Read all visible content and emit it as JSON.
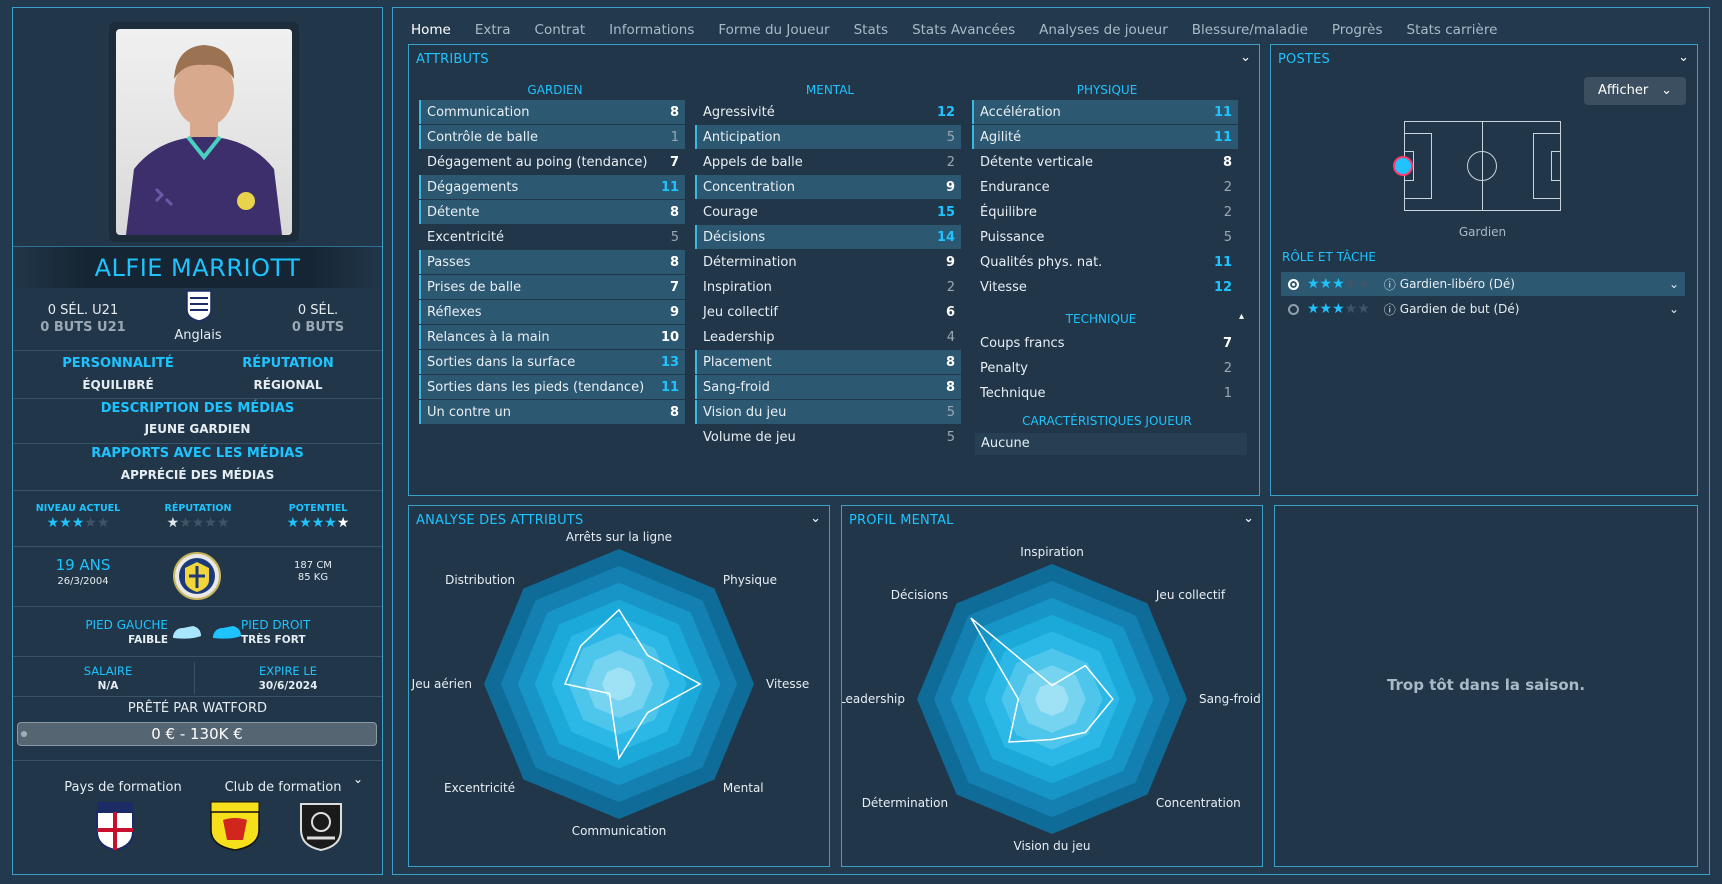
{
  "player": {
    "name": "ALFIE MARRIOTT",
    "u21_caps": "0 SÉL. U21",
    "u21_goals": "0 BUTS U21",
    "nationality": "Anglais",
    "caps": "0 SÉL.",
    "goals": "0 BUTS",
    "personality_label": "PERSONNALITÉ",
    "personality_value": "ÉQUILIBRÉ",
    "reputation_label": "RÉPUTATION",
    "reputation_value": "RÉGIONAL",
    "media_desc_label": "DESCRIPTION DES MÉDIAS",
    "media_desc_value": "JEUNE GARDIEN",
    "media_rel_label": "RAPPORTS AVEC LES MÉDIAS",
    "media_rel_value": "APPRÉCIÉ DES MÉDIAS",
    "current_ability_label": "NIVEAU ACTUEL",
    "current_ability_stars": 3,
    "reputation_stars_label": "RÉPUTATION",
    "reputation_stars": 0.5,
    "potential_label": "POTENTIEL",
    "potential_stars": 4,
    "age": "19 ANS",
    "dob": "26/3/2004",
    "height": "187 CM",
    "weight": "85 KG",
    "left_foot_label": "PIED GAUCHE",
    "left_foot_value": "FAIBLE",
    "right_foot_label": "PIED DROIT",
    "right_foot_value": "TRÈS FORT",
    "salary_label": "SALAIRE",
    "salary_value": "N/A",
    "expires_label": "EXPIRE LE",
    "expires_value": "30/6/2024",
    "loan_text": "PRÊTÉ PAR WATFORD",
    "value_range": "0 € - 130K €",
    "training_country_label": "Pays de formation",
    "training_club_label": "Club de formation"
  },
  "tabs": [
    "Home",
    "Extra",
    "Contrat",
    "Informations",
    "Forme du Joueur",
    "Stats",
    "Stats Avancées",
    "Analyses de joueur",
    "Blessure/maladie",
    "Progrès",
    "Stats carrière"
  ],
  "attributes": {
    "title": "ATTRIBUTS",
    "goalkeeper_head": "GARDIEN",
    "mental_head": "MENTAL",
    "physical_head": "PHYSIQUE",
    "technical_head": "TECHNIQUE",
    "traits_head": "CARACTÉRISTIQUES JOUEUR",
    "traits_value": "Aucune",
    "goalkeeper": [
      {
        "name": "Communication",
        "value": "8",
        "hl": true
      },
      {
        "name": "Contrôle de balle",
        "value": "1",
        "hl": true
      },
      {
        "name": "Dégagement au poing (tendance)",
        "value": "7",
        "hl": false
      },
      {
        "name": "Dégagements",
        "value": "11",
        "hl": true
      },
      {
        "name": "Détente",
        "value": "8",
        "hl": true
      },
      {
        "name": "Excentricité",
        "value": "5",
        "hl": false
      },
      {
        "name": "Passes",
        "value": "8",
        "hl": true
      },
      {
        "name": "Prises de balle",
        "value": "7",
        "hl": true
      },
      {
        "name": "Réflexes",
        "value": "9",
        "hl": true
      },
      {
        "name": "Relances à la main",
        "value": "10",
        "hl": true
      },
      {
        "name": "Sorties dans la surface",
        "value": "13",
        "hl": true
      },
      {
        "name": "Sorties dans les pieds (tendance)",
        "value": "11",
        "hl": true
      },
      {
        "name": "Un contre un",
        "value": "8",
        "hl": true
      }
    ],
    "mental": [
      {
        "name": "Agressivité",
        "value": "12",
        "hl": false
      },
      {
        "name": "Anticipation",
        "value": "5",
        "hl": true
      },
      {
        "name": "Appels de balle",
        "value": "2",
        "hl": false
      },
      {
        "name": "Concentration",
        "value": "9",
        "hl": true
      },
      {
        "name": "Courage",
        "value": "15",
        "hl": false
      },
      {
        "name": "Décisions",
        "value": "14",
        "hl": true
      },
      {
        "name": "Détermination",
        "value": "9",
        "hl": false
      },
      {
        "name": "Inspiration",
        "value": "2",
        "hl": false
      },
      {
        "name": "Jeu collectif",
        "value": "6",
        "hl": false
      },
      {
        "name": "Leadership",
        "value": "4",
        "hl": false
      },
      {
        "name": "Placement",
        "value": "8",
        "hl": true
      },
      {
        "name": "Sang-froid",
        "value": "8",
        "hl": true
      },
      {
        "name": "Vision du jeu",
        "value": "5",
        "hl": true
      },
      {
        "name": "Volume de jeu",
        "value": "5",
        "hl": false
      }
    ],
    "physical": [
      {
        "name": "Accélération",
        "value": "11",
        "hl": true
      },
      {
        "name": "Agilité",
        "value": "11",
        "hl": true
      },
      {
        "name": "Détente verticale",
        "value": "8",
        "hl": false
      },
      {
        "name": "Endurance",
        "value": "2",
        "hl": false
      },
      {
        "name": "Équilibre",
        "value": "2",
        "hl": false
      },
      {
        "name": "Puissance",
        "value": "5",
        "hl": false
      },
      {
        "name": "Qualités phys. nat.",
        "value": "11",
        "hl": false
      },
      {
        "name": "Vitesse",
        "value": "12",
        "hl": false
      }
    ],
    "technical": [
      {
        "name": "Coups francs",
        "value": "7",
        "hl": false
      },
      {
        "name": "Penalty",
        "value": "2",
        "hl": false
      },
      {
        "name": "Technique",
        "value": "1",
        "hl": false
      }
    ]
  },
  "positions": {
    "title": "POSTES",
    "show_button": "Afficher",
    "position_label": "Gardien",
    "roles_title": "RÔLE ET TÂCHE",
    "roles": [
      {
        "name": "Gardien-libéro (Dé)",
        "stars": 3,
        "selected": true
      },
      {
        "name": "Gardien de but (Dé)",
        "stars": 3,
        "selected": false
      }
    ]
  },
  "analysis": {
    "title": "ANALYSE DES ATTRIBUTS",
    "axes": [
      "Arrêts sur la ligne",
      "Physique",
      "Vitesse",
      "Mental",
      "Communication",
      "Excentricité",
      "Jeu aérien",
      "Distribution"
    ],
    "values": [
      0.55,
      0.3,
      0.6,
      0.3,
      0.55,
      0.1,
      0.4,
      0.4
    ]
  },
  "mental_profile": {
    "title": "PROFIL MENTAL",
    "axes": [
      "Inspiration",
      "Jeu collectif",
      "Sang-froid",
      "Concentration",
      "Vision du jeu",
      "Détermination",
      "Leadership",
      "Décisions"
    ],
    "values": [
      0.1,
      0.35,
      0.45,
      0.35,
      0.3,
      0.45,
      0.25,
      0.85
    ]
  },
  "season": {
    "message": "Trop tôt dans la saison."
  },
  "colors": {
    "accent": "#1ec3ff",
    "panel_border": "#3aa0c7",
    "background": "#233a4e"
  }
}
